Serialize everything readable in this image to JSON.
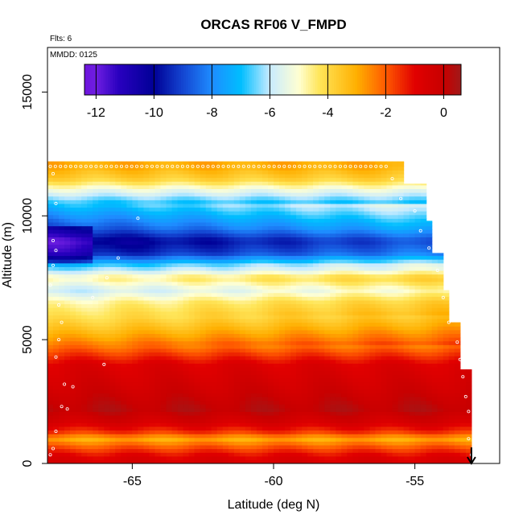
{
  "chart_data": {
    "type": "heatmap",
    "title": "ORCAS RF06 V_FMPD",
    "flights_label": "Flts: 6",
    "date_label": "MMDD: 0125",
    "xlabel": "Latitude (deg N)",
    "ylabel": "Altitude (m)",
    "xlim": [
      -68,
      -52
    ],
    "ylim": [
      0,
      16800
    ],
    "x_ticks": [
      -65,
      -60,
      -55
    ],
    "y_ticks": [
      0,
      5000,
      10000,
      15000
    ],
    "colorbar": {
      "range": [
        -12.4,
        0.6
      ],
      "ticks": [
        -12,
        -10,
        -8,
        -6,
        -4,
        -2,
        0
      ]
    },
    "profile_by_altitude": [
      {
        "altitude": 0,
        "value": -0.6
      },
      {
        "altitude": 300,
        "value": -0.9
      },
      {
        "altitude": 700,
        "value": -2.0
      },
      {
        "altitude": 1000,
        "value": -3.0
      },
      {
        "altitude": 1300,
        "value": -1.5
      },
      {
        "altitude": 1700,
        "value": -0.5
      },
      {
        "altitude": 2200,
        "value": 0.2
      },
      {
        "altitude": 3000,
        "value": -0.3
      },
      {
        "altitude": 4000,
        "value": -0.8
      },
      {
        "altitude": 4500,
        "value": -1.8
      },
      {
        "altitude": 5000,
        "value": -2.8
      },
      {
        "altitude": 5500,
        "value": -3.6
      },
      {
        "altitude": 6000,
        "value": -4.3
      },
      {
        "altitude": 6500,
        "value": -4.8
      },
      {
        "altitude": 7000,
        "value": -6.0
      },
      {
        "altitude": 7500,
        "value": -4.8
      },
      {
        "altitude": 8000,
        "value": -7.0
      },
      {
        "altitude": 8500,
        "value": -9.8
      },
      {
        "altitude": 9000,
        "value": -10.5
      },
      {
        "altitude": 9500,
        "value": -9.0
      },
      {
        "altitude": 10000,
        "value": -8.0
      },
      {
        "altitude": 10500,
        "value": -7.0
      },
      {
        "altitude": 11000,
        "value": -5.5
      },
      {
        "altitude": 11500,
        "value": -3.8
      },
      {
        "altitude": 12000,
        "value": -3.0
      }
    ],
    "top_boundary": [
      {
        "lat": -68.0,
        "alt": 12200
      },
      {
        "lat": -55.8,
        "alt": 12200
      },
      {
        "lat": -55.3,
        "alt": 11300
      },
      {
        "lat": -54.6,
        "alt": 9800
      },
      {
        "lat": -54.3,
        "alt": 8500
      },
      {
        "lat": -54.0,
        "alt": 7000
      },
      {
        "lat": -53.7,
        "alt": 5700
      },
      {
        "lat": -53.3,
        "alt": 3800
      },
      {
        "lat": -53.0,
        "alt": 2200
      }
    ],
    "marker_latitude": -53.0
  }
}
